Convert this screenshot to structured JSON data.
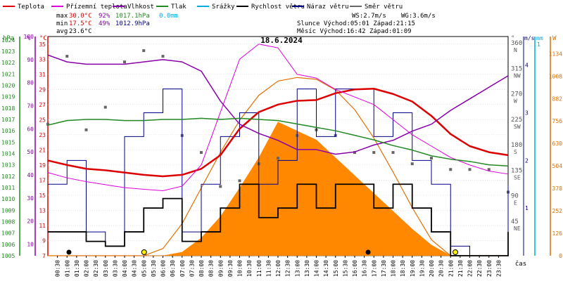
{
  "chart_data": {
    "type": "line",
    "title": "18.6.2024",
    "time_label": "čas",
    "legend": [
      {
        "name": "Teplota",
        "color": "#dd0000"
      },
      {
        "name": "Přízemní teplota",
        "color": "#dd00dd"
      },
      {
        "name": "Vlhkost",
        "color": "#8800aa"
      },
      {
        "name": "Tlak",
        "color": "#228822"
      },
      {
        "name": "Srážky",
        "color": "#00aadd"
      },
      {
        "name": "Rychlost větru",
        "color": "#000000"
      },
      {
        "name": "Náraz větru",
        "color": "#000088"
      },
      {
        "name": "Směr větru",
        "color": "#666666"
      }
    ],
    "stats": {
      "max": {
        "label": "max",
        "temp": "30.0°C",
        "hum": "92%",
        "press": "1017.1hPa",
        "rain": "0.0mm"
      },
      "min": {
        "label": "min",
        "temp": "17.5°C",
        "hum": "49%",
        "press": "1012.9hPa"
      },
      "avg": {
        "label": "avg",
        "temp": "23.6°C"
      },
      "ws": "WS:2.7m/s",
      "wg": "WG:3.6m/s",
      "sun": "Slunce Východ:05:01  Západ:21:15",
      "moon": "Měsíc  Východ:16:42  Západ:01:09"
    },
    "units": {
      "hpa": "hPa",
      "pct": "%",
      "temp": "°C",
      "deg": "°",
      "ms": "m/s",
      "mm": "mm",
      "w": "W"
    },
    "axes": {
      "pressure": [
        "1024",
        "1023",
        "1022",
        "1021",
        "1020",
        "1019",
        "1018",
        "1017",
        "1016",
        "1015",
        "1014",
        "1013",
        "1012",
        "1011",
        "1010",
        "1009",
        "1008",
        "1007",
        "1006",
        "1005"
      ],
      "humidity": [
        "100",
        "90",
        "80",
        "70",
        "60",
        "50",
        "40",
        "30",
        "20",
        "10"
      ],
      "temperature": [
        "35",
        "33",
        "31",
        "29",
        "27",
        "25",
        "23",
        "21",
        "19",
        "17",
        "15",
        "13",
        "11",
        "9",
        "7"
      ],
      "direction": [
        {
          "deg": "360",
          "dir": "N",
          "pos": 0
        },
        {
          "deg": "315",
          "dir": "NW",
          "pos": 0.125
        },
        {
          "deg": "270",
          "dir": "W",
          "pos": 0.25
        },
        {
          "deg": "225",
          "dir": "SW",
          "pos": 0.375
        },
        {
          "deg": "180",
          "dir": "S",
          "pos": 0.5
        },
        {
          "deg": "135",
          "dir": "SE",
          "pos": 0.625
        },
        {
          "deg": "90",
          "dir": "E",
          "pos": 0.75
        },
        {
          "deg": "45",
          "dir": "NE",
          "pos": 0.875
        }
      ],
      "wind_ms": [
        "4",
        "3",
        "2",
        "1"
      ],
      "rain_mm": "1",
      "solar": [
        "1134",
        "1008",
        "882",
        "756",
        "630",
        "504",
        "378",
        "252",
        "126",
        "0"
      ],
      "ylim_temp": [
        7,
        36
      ]
    },
    "time_ticks": [
      "00:30",
      "01:00",
      "01:30",
      "02:00",
      "02:30",
      "03:00",
      "03:30",
      "04:00",
      "04:30",
      "05:00",
      "05:30",
      "06:00",
      "06:30",
      "07:00",
      "07:30",
      "08:00",
      "08:30",
      "09:00",
      "09:30",
      "10:00",
      "10:30",
      "11:00",
      "11:30",
      "12:00",
      "12:30",
      "13:00",
      "13:30",
      "14:00",
      "14:30",
      "15:00",
      "15:30",
      "16:00",
      "16:30",
      "17:00",
      "17:30",
      "18:00",
      "18:30",
      "19:00",
      "19:30",
      "20:00",
      "20:30",
      "21:00",
      "21:30",
      "22:00",
      "22:30",
      "23:00",
      "23:30"
    ],
    "hours": [
      0,
      1,
      2,
      3,
      4,
      5,
      6,
      7,
      8,
      9,
      10,
      11,
      12,
      13,
      14,
      15,
      16,
      17,
      18,
      19,
      20,
      21,
      22,
      23,
      24
    ],
    "series": [
      {
        "name": "Teplota",
        "axis": "temp",
        "color": "#dd0000",
        "width": 2.5,
        "values": [
          19.6,
          19.0,
          18.5,
          18.3,
          18.0,
          17.7,
          17.5,
          17.7,
          18.5,
          20.3,
          23.8,
          26.0,
          27.0,
          27.5,
          27.6,
          28.5,
          29.0,
          29.1,
          28.4,
          27.4,
          25.5,
          23.1,
          21.5,
          20.7,
          20.3
        ]
      },
      {
        "name": "Přízemní teplota",
        "axis": "temp",
        "color": "#dd00dd",
        "width": 1,
        "values": [
          18.0,
          17.3,
          16.8,
          16.4,
          16.0,
          15.8,
          15.6,
          16.2,
          19.0,
          26.0,
          33.0,
          35.0,
          34.5,
          31.0,
          30.5,
          29.0,
          28.0,
          27.0,
          25.0,
          23.0,
          21.5,
          20.0,
          19.0,
          18.2,
          17.8
        ]
      },
      {
        "name": "Vlhkost",
        "axis": "hum",
        "color": "#8800aa",
        "width": 1.5,
        "values": [
          92,
          89,
          88,
          88,
          88,
          89,
          90,
          89,
          85,
          72,
          62,
          58,
          55,
          51,
          51,
          49,
          50,
          53,
          55,
          59,
          62,
          68,
          73,
          78,
          83
        ]
      },
      {
        "name": "Tlak",
        "axis": "press",
        "color": "#228822",
        "width": 1.5,
        "values": [
          1016.5,
          1016.9,
          1017.0,
          1017.0,
          1016.9,
          1016.9,
          1017.0,
          1017.0,
          1017.1,
          1017.0,
          1017.1,
          1017.0,
          1016.9,
          1016.6,
          1016.3,
          1016.0,
          1015.6,
          1015.2,
          1014.7,
          1014.3,
          1013.8,
          1013.5,
          1013.3,
          1013.0,
          1012.9
        ]
      }
    ],
    "solar_radiation": [
      0,
      0,
      0,
      0,
      0,
      0,
      0,
      20,
      100,
      220,
      380,
      550,
      750,
      700,
      650,
      550,
      450,
      350,
      250,
      150,
      60,
      0,
      0,
      0,
      0
    ],
    "solar_clear_sky": [
      0,
      0,
      0,
      0,
      0,
      0,
      40,
      180,
      380,
      580,
      760,
      900,
      980,
      1000,
      990,
      930,
      820,
      660,
      470,
      270,
      90,
      0,
      0,
      0,
      0
    ],
    "wind_speed": [
      0.5,
      0.5,
      0.3,
      0.2,
      0.5,
      1.0,
      1.2,
      0.3,
      0.5,
      1.0,
      1.5,
      0.8,
      1.0,
      1.5,
      1.0,
      1.5,
      1.5,
      1.0,
      1.5,
      1.0,
      0.5,
      0.0,
      0.0,
      0.0,
      0.5
    ],
    "wind_gust": [
      1.5,
      2.0,
      0.5,
      0.2,
      2.5,
      3.0,
      3.5,
      0.5,
      1.5,
      2.5,
      3.0,
      1.5,
      2.0,
      3.5,
      2.5,
      3.5,
      3.5,
      2.5,
      3.0,
      2.0,
      1.5,
      0.2,
      0.0,
      0.0,
      1.5
    ],
    "wind_direction": [
      220,
      340,
      210,
      250,
      330,
      350,
      340,
      200,
      170,
      110,
      120,
      150,
      160,
      200,
      210,
      200,
      170,
      170,
      170,
      150,
      160,
      140,
      140,
      140,
      100
    ]
  }
}
